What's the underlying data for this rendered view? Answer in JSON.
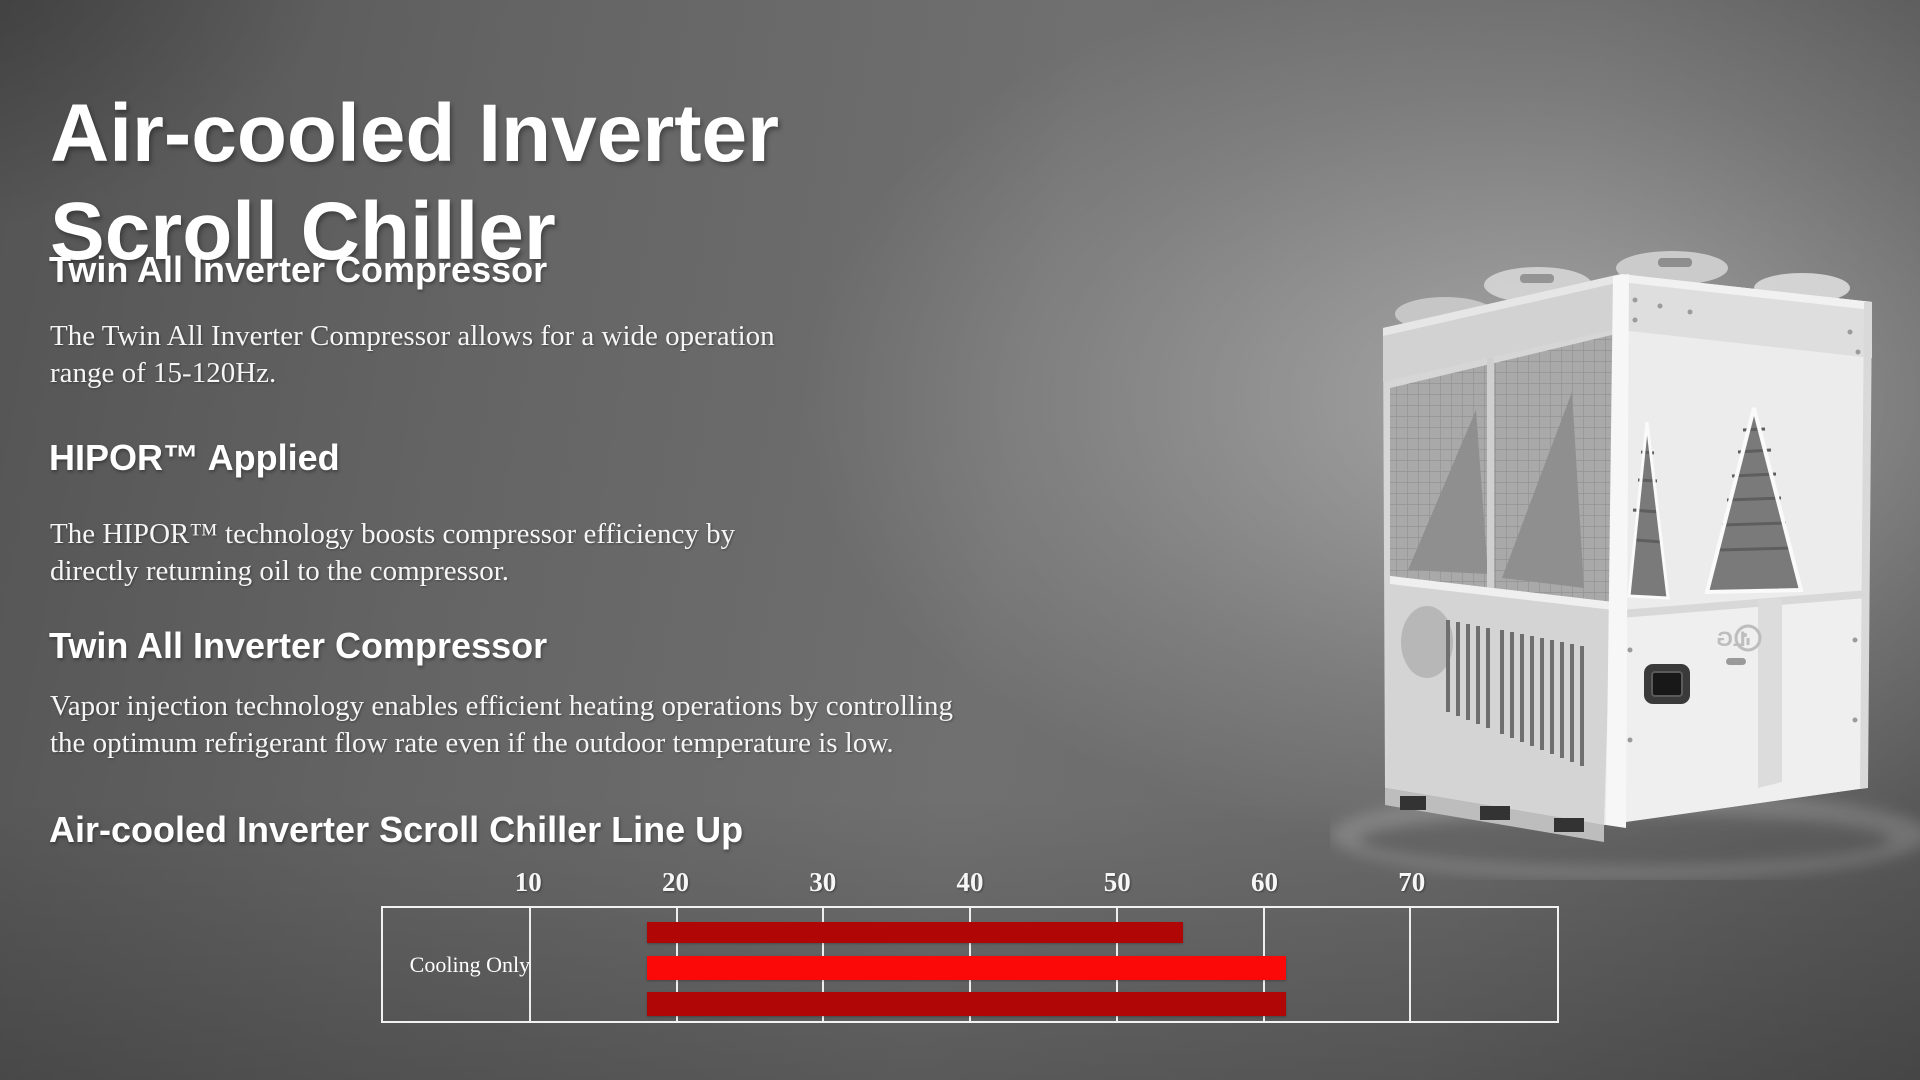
{
  "title": {
    "line1": "Air-cooled Inverter",
    "line2": "Scroll Chiller"
  },
  "sections": [
    {
      "heading": "Twin All Inverter Compressor",
      "body_lines": [
        "The Twin All Inverter Compressor allows for a wide operation",
        "range of 15-120Hz."
      ]
    },
    {
      "heading": "HIPOR™ Applied",
      "body_lines": [
        "The HIPOR™ technology boosts compressor efficiency by",
        "directly returning oil to the compressor."
      ]
    },
    {
      "heading": "Twin All Inverter Compressor",
      "body_lines": [
        "Vapor injection technology enables efficient heating operations by controlling",
        "the optimum refrigerant flow rate even if the outdoor temperature is low."
      ]
    }
  ],
  "lineup": {
    "heading": "Air-cooled Inverter Scroll Chiller Line Up"
  },
  "chart_data": {
    "type": "bar",
    "orientation": "horizontal",
    "title": "Air-cooled Inverter Scroll Chiller Line Up",
    "row_label": "Cooling Only",
    "axis": {
      "min": 0,
      "max": 80,
      "ticks": [
        10,
        20,
        30,
        40,
        50,
        60,
        70
      ],
      "tick_position": "top",
      "grid": true
    },
    "bars": [
      {
        "name": "lineup-bar-1",
        "start": 18,
        "end": 54.5,
        "color": "#b10606"
      },
      {
        "name": "lineup-bar-2",
        "start": 18,
        "end": 61.5,
        "color": "#fb0808"
      },
      {
        "name": "lineup-bar-3",
        "start": 18,
        "end": 61.5,
        "color": "#b10606"
      }
    ],
    "border_color": "#f2f2f2",
    "legend": null,
    "units": ""
  },
  "product_image": {
    "description": "Air-cooled inverter scroll chiller unit",
    "logo_text": "LG"
  }
}
